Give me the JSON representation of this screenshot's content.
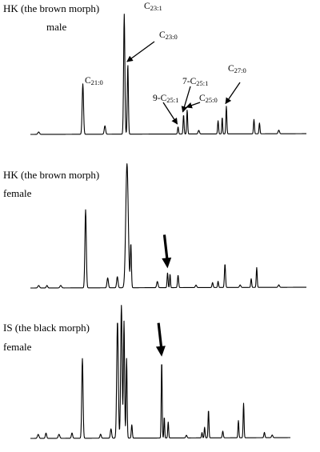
{
  "chart_data": [
    {
      "type": "line",
      "title_line1": "HK (the brown morph)",
      "title_line2": "male",
      "xlabel": "",
      "ylabel": "",
      "grid": false,
      "x_range": [
        0,
        100
      ],
      "y_range": [
        0,
        100
      ],
      "peaks": [
        {
          "x": 3,
          "y": 2,
          "w": 0.6
        },
        {
          "x": 19,
          "y": 42,
          "w": 0.5,
          "label": "C21:0",
          "sub": "21:0",
          "text": "C"
        },
        {
          "x": 27,
          "y": 7,
          "w": 0.5
        },
        {
          "x": 34,
          "y": 100,
          "w": 0.45,
          "label": "C23:1",
          "sub": "23:1",
          "text": "C"
        },
        {
          "x": 35.3,
          "y": 58,
          "w": 0.4,
          "label": "C23:0",
          "sub": "23:0",
          "text": "C"
        },
        {
          "x": 53.5,
          "y": 6,
          "w": 0.35,
          "label": "9-C25:1",
          "pre": "9-",
          "text": "C",
          "sub": "25:1"
        },
        {
          "x": 55.5,
          "y": 16,
          "w": 0.35,
          "label": "7-C25:1",
          "pre": "7-",
          "text": "C",
          "sub": "25:1"
        },
        {
          "x": 56.8,
          "y": 20,
          "w": 0.35,
          "label": "C25:0",
          "text": "C",
          "sub": "25:0"
        },
        {
          "x": 61,
          "y": 3,
          "w": 0.5
        },
        {
          "x": 68,
          "y": 11,
          "w": 0.35
        },
        {
          "x": 69.5,
          "y": 14,
          "w": 0.3
        },
        {
          "x": 71,
          "y": 23,
          "w": 0.35,
          "label": "C27:0",
          "text": "C",
          "sub": "27:0"
        },
        {
          "x": 81,
          "y": 12,
          "w": 0.35
        },
        {
          "x": 83,
          "y": 9,
          "w": 0.35
        },
        {
          "x": 90,
          "y": 3,
          "w": 0.5
        }
      ]
    },
    {
      "type": "line",
      "title_line1": "HK (the brown morph)",
      "title_line2": "female",
      "xlabel": "",
      "ylabel": "",
      "grid": false,
      "x_range": [
        0,
        100
      ],
      "y_range": [
        0,
        100
      ],
      "peaks": [
        {
          "x": 3,
          "y": 2,
          "w": 0.6
        },
        {
          "x": 6,
          "y": 2,
          "w": 0.5
        },
        {
          "x": 11,
          "y": 2,
          "w": 0.6
        },
        {
          "x": 20,
          "y": 63,
          "w": 0.5
        },
        {
          "x": 28,
          "y": 8,
          "w": 0.5
        },
        {
          "x": 31.5,
          "y": 9,
          "w": 0.5
        },
        {
          "x": 35,
          "y": 100,
          "w": 0.9
        },
        {
          "x": 36.4,
          "y": 35,
          "w": 0.4
        },
        {
          "x": 46,
          "y": 5,
          "w": 0.5
        },
        {
          "x": 49.7,
          "y": 12,
          "w": 0.35
        },
        {
          "x": 50.6,
          "y": 11,
          "w": 0.3
        },
        {
          "x": 53.5,
          "y": 10,
          "w": 0.4
        },
        {
          "x": 60,
          "y": 2,
          "w": 0.5
        },
        {
          "x": 66,
          "y": 4,
          "w": 0.4
        },
        {
          "x": 68,
          "y": 5,
          "w": 0.35
        },
        {
          "x": 70.5,
          "y": 19,
          "w": 0.4
        },
        {
          "x": 76,
          "y": 2,
          "w": 0.5
        },
        {
          "x": 80,
          "y": 7,
          "w": 0.35
        },
        {
          "x": 82,
          "y": 16,
          "w": 0.35
        },
        {
          "x": 90,
          "y": 2,
          "w": 0.5
        }
      ]
    },
    {
      "type": "line",
      "title_line1": "IS (the black morph)",
      "title_line2": "female",
      "xlabel": "",
      "ylabel": "",
      "grid": false,
      "x_range": [
        0,
        100
      ],
      "y_range": [
        0,
        100
      ],
      "peaks": [
        {
          "x": 3,
          "y": 3,
          "w": 0.6
        },
        {
          "x": 6,
          "y": 4,
          "w": 0.5
        },
        {
          "x": 11,
          "y": 3,
          "w": 0.6
        },
        {
          "x": 16,
          "y": 4,
          "w": 0.5
        },
        {
          "x": 20,
          "y": 60,
          "w": 0.5
        },
        {
          "x": 27,
          "y": 3,
          "w": 0.5
        },
        {
          "x": 31,
          "y": 7,
          "w": 0.5
        },
        {
          "x": 33.5,
          "y": 88,
          "w": 0.6
        },
        {
          "x": 35,
          "y": 100,
          "w": 0.55
        },
        {
          "x": 36,
          "y": 88,
          "w": 0.45
        },
        {
          "x": 37,
          "y": 60,
          "w": 0.4
        },
        {
          "x": 39,
          "y": 10,
          "w": 0.4
        },
        {
          "x": 50.5,
          "y": 58,
          "w": 0.35
        },
        {
          "x": 51.5,
          "y": 16,
          "w": 0.3
        },
        {
          "x": 53,
          "y": 12,
          "w": 0.35
        },
        {
          "x": 60,
          "y": 2,
          "w": 0.5
        },
        {
          "x": 66,
          "y": 4,
          "w": 0.35
        },
        {
          "x": 67,
          "y": 8,
          "w": 0.35
        },
        {
          "x": 68.5,
          "y": 21,
          "w": 0.35
        },
        {
          "x": 74,
          "y": 5,
          "w": 0.4
        },
        {
          "x": 80,
          "y": 13,
          "w": 0.35
        },
        {
          "x": 82,
          "y": 26,
          "w": 0.35
        },
        {
          "x": 90,
          "y": 4,
          "w": 0.4
        },
        {
          "x": 93,
          "y": 2,
          "w": 0.5
        }
      ]
    }
  ],
  "arrows": [
    {
      "panel": 0,
      "target": "C23:0",
      "style": "thin"
    },
    {
      "panel": 0,
      "target": "9-C25:1",
      "style": "thin"
    },
    {
      "panel": 0,
      "target": "7-C25:1",
      "style": "thin"
    },
    {
      "panel": 0,
      "target": "C25:0",
      "style": "thin"
    },
    {
      "panel": 0,
      "target": "C27:0",
      "style": "thin"
    },
    {
      "panel": 1,
      "target_index": 9,
      "style": "bold"
    },
    {
      "panel": 2,
      "target_index": 12,
      "style": "bold"
    }
  ]
}
